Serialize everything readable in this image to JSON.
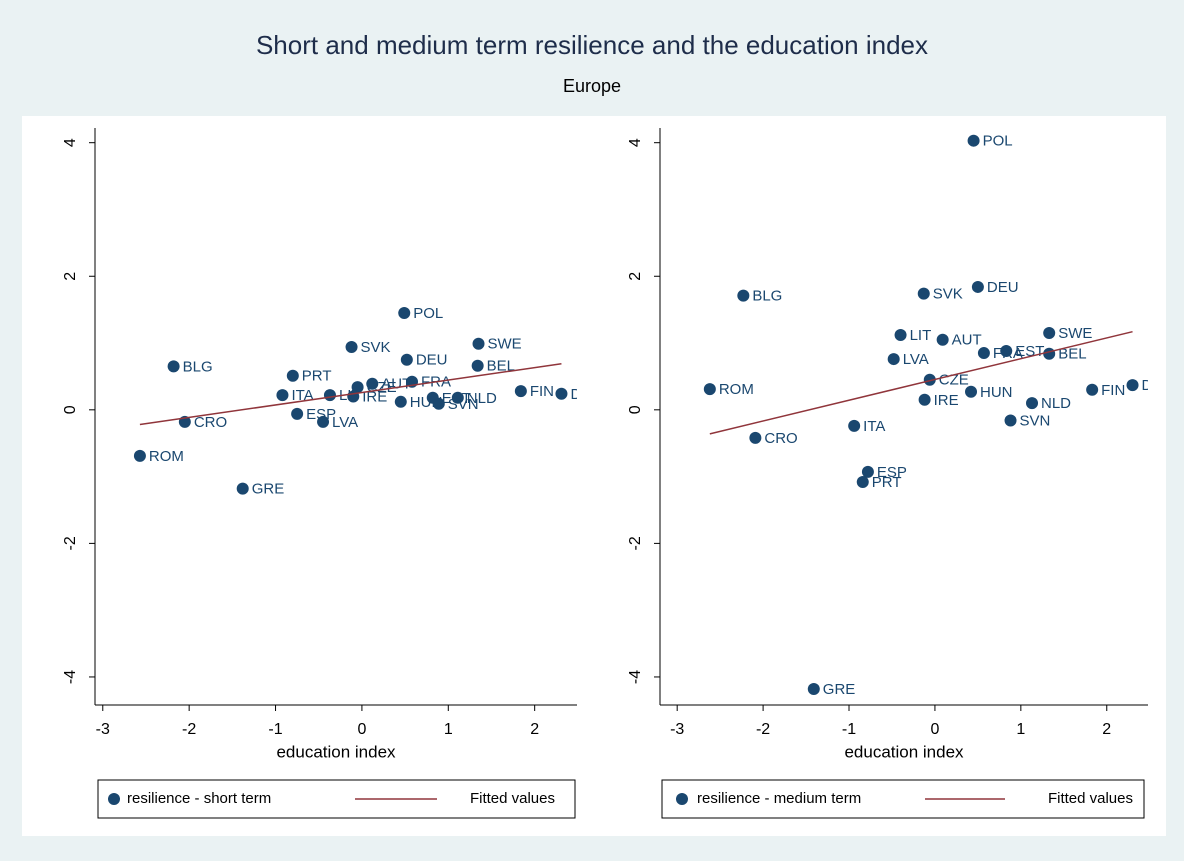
{
  "title": "Short and medium term resilience and the education index",
  "subtitle": "Europe",
  "chart_data": [
    {
      "type": "scatter",
      "xlabel": "education index",
      "xlim": [
        -3.09,
        2.49
      ],
      "ylim": [
        -4.42,
        4.22
      ],
      "xticks": [
        -3,
        -2,
        -1,
        0,
        1,
        2
      ],
      "yticks": [
        -4,
        -2,
        0,
        2,
        4
      ],
      "series": [
        {
          "name": "resilience - short term",
          "color": "#1a476f",
          "labels": [
            "POL",
            "SWE",
            "SVK",
            "DEU",
            "BLG",
            "BEL",
            "PRT",
            "FRA",
            "AUT",
            "CZE",
            "ITA",
            "LIT",
            "IRE",
            "HUN",
            "EST",
            "SVN",
            "NLD",
            "FIN",
            "DNK",
            "ESP",
            "LVA",
            "CRO",
            "ROM",
            "GRE"
          ],
          "x": [
            0.49,
            1.35,
            -0.12,
            0.52,
            -2.18,
            1.34,
            -0.8,
            0.58,
            0.12,
            -0.05,
            -0.92,
            -0.37,
            -0.1,
            0.45,
            0.82,
            0.89,
            1.11,
            1.84,
            2.31,
            -0.75,
            -0.45,
            -2.05,
            -2.57,
            -1.38
          ],
          "values": [
            1.45,
            0.99,
            0.94,
            0.75,
            0.65,
            0.66,
            0.51,
            0.42,
            0.39,
            0.34,
            0.22,
            0.22,
            0.2,
            0.12,
            0.18,
            0.09,
            0.18,
            0.28,
            0.24,
            -0.06,
            -0.18,
            -0.18,
            -0.69,
            -1.18
          ]
        },
        {
          "name": "Fitted values",
          "type": "line",
          "color": "#90353b",
          "x": [
            -2.57,
            2.31
          ],
          "values": [
            -0.22,
            0.69
          ]
        }
      ]
    },
    {
      "type": "scatter",
      "xlabel": "education index",
      "xlim": [
        -3.2,
        2.48
      ],
      "ylim": [
        -4.42,
        4.22
      ],
      "xticks": [
        -3,
        -2,
        -1,
        0,
        1,
        2
      ],
      "yticks": [
        -4,
        -2,
        0,
        2,
        4
      ],
      "series": [
        {
          "name": "resilience - medium term",
          "color": "#1a476f",
          "labels": [
            "POL",
            "DEU",
            "SVK",
            "BLG",
            "SWE",
            "LIT",
            "AUT",
            "EST",
            "FRA",
            "BEL",
            "LVA",
            "CZE",
            "DNK",
            "ROM",
            "FIN",
            "HUN",
            "IRE",
            "NLD",
            "SVN",
            "ITA",
            "CRO",
            "ESP",
            "PRT",
            "GRE"
          ],
          "x": [
            0.45,
            0.5,
            -0.13,
            -2.23,
            1.33,
            -0.4,
            0.09,
            0.83,
            0.57,
            1.33,
            -0.48,
            -0.06,
            2.3,
            -2.62,
            1.83,
            0.42,
            -0.12,
            1.13,
            0.88,
            -0.94,
            -2.09,
            -0.78,
            -0.84,
            -1.41
          ],
          "values": [
            4.03,
            1.84,
            1.74,
            1.71,
            1.15,
            1.12,
            1.05,
            0.88,
            0.85,
            0.84,
            0.76,
            0.45,
            0.37,
            0.31,
            0.3,
            0.27,
            0.15,
            0.1,
            -0.16,
            -0.24,
            -0.42,
            -0.93,
            -1.08,
            -4.18
          ]
        },
        {
          "name": "Fitted values",
          "type": "line",
          "color": "#90353b",
          "x": [
            -2.62,
            2.3
          ],
          "values": [
            -0.36,
            1.17
          ]
        }
      ]
    }
  ]
}
